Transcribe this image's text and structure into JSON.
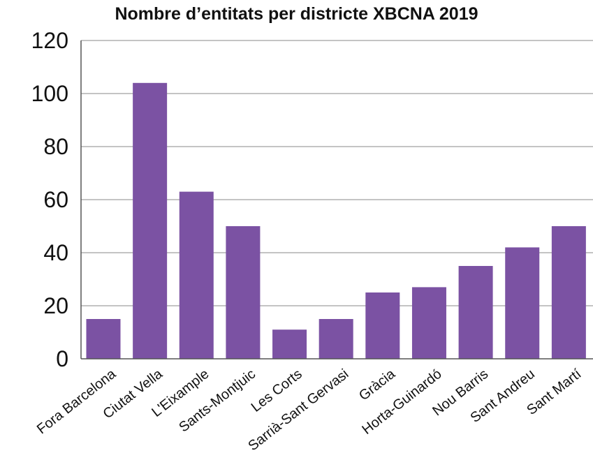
{
  "chart_data": {
    "type": "bar",
    "title": "Nombre d’entitats per districte XBCNA 2019",
    "xlabel": "",
    "ylabel": "",
    "ylim": [
      0,
      120
    ],
    "yticks": [
      0,
      20,
      40,
      60,
      80,
      100,
      120
    ],
    "grid": true,
    "legend": "none",
    "bar_color": "#7B52A3",
    "grid_color": "#A0A0A0",
    "categories": [
      "Fora Barcelona",
      "Ciutat Vella",
      "L'Eixample",
      "Sants-Montjuic",
      "Les Corts",
      "Sarrià-Sant Gervasi",
      "Gràcia",
      "Horta-Guinardó",
      "Nou Barris",
      "Sant Andreu",
      "Sant Martí"
    ],
    "values": [
      15,
      104,
      63,
      50,
      11,
      15,
      25,
      27,
      35,
      42,
      50
    ]
  }
}
